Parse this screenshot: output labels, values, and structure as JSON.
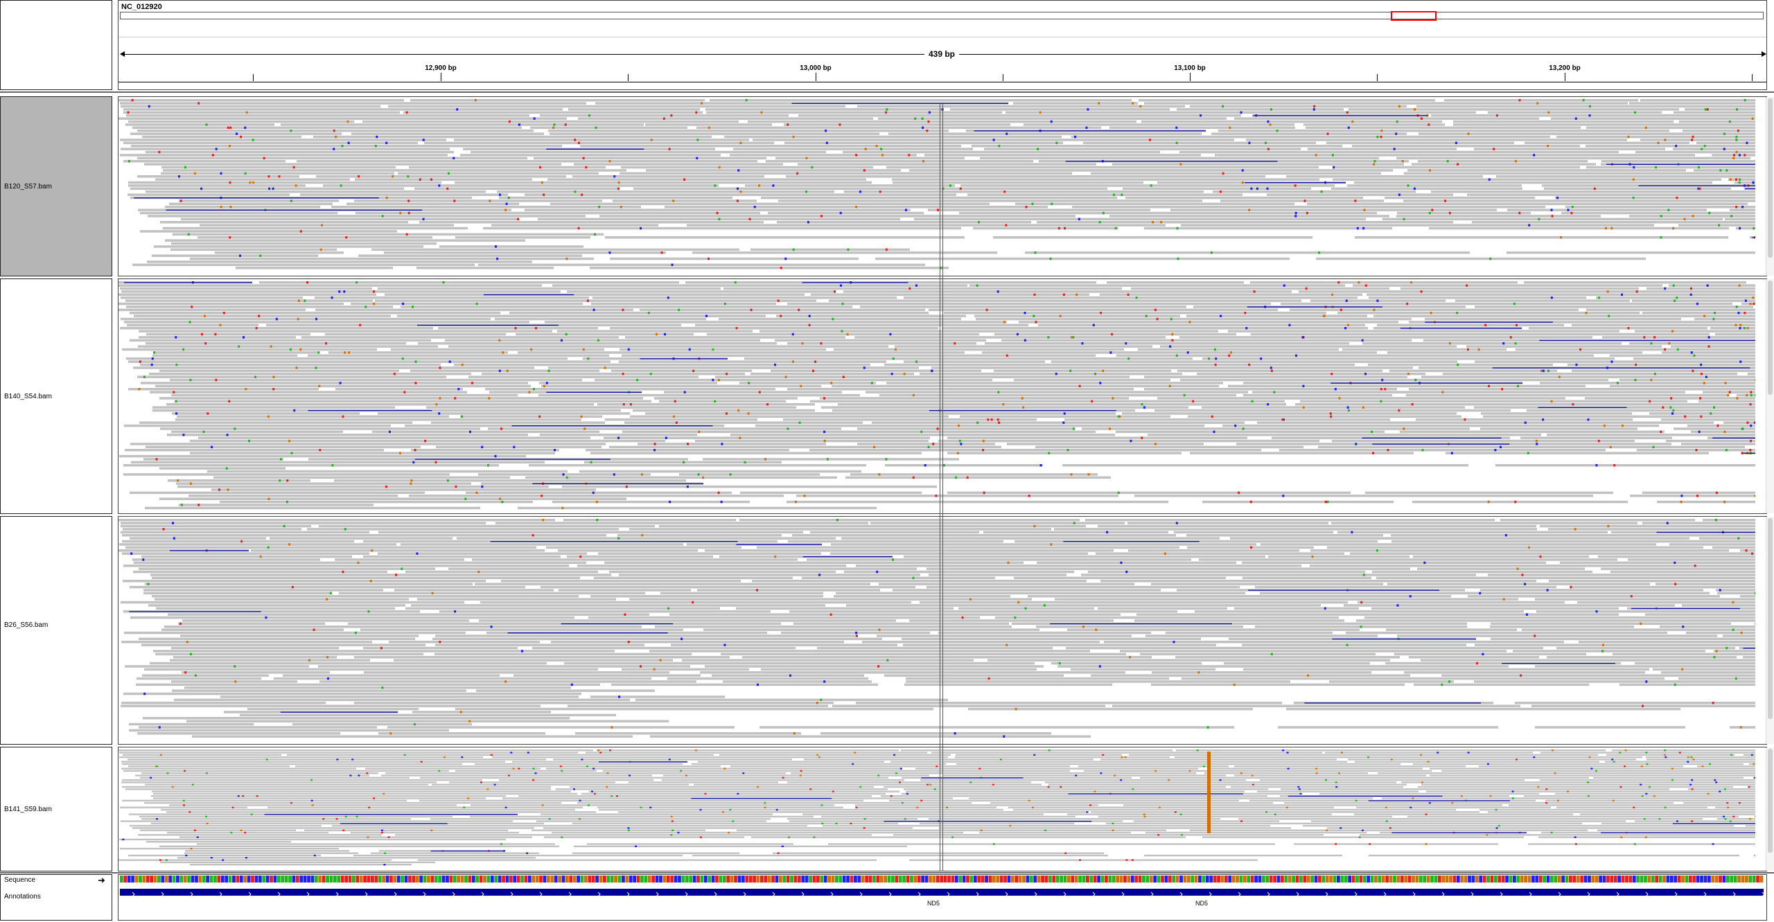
{
  "ruler": {
    "chromosome": "NC_012920",
    "span_label": "439 bp",
    "ticks": [
      "12,900 bp",
      "13,000 bp",
      "13,100 bp",
      "13,200 bp"
    ]
  },
  "tracks": [
    {
      "name": "B120_S57.bam",
      "selected": true
    },
    {
      "name": "B140_S54.bam",
      "selected": false
    },
    {
      "name": "B26_S56.bam",
      "selected": false
    },
    {
      "name": "B141_S59.bam",
      "selected": false
    }
  ],
  "sequence": {
    "label": "Sequence",
    "strand_icon": "right-arrow-icon"
  },
  "annotations": {
    "label": "Annotations",
    "genes": [
      "ND5",
      "ND5"
    ]
  },
  "colors": {
    "read": "#c1c1c1",
    "deletion_line": "#1a1aa8",
    "base_A": "#1fb51f",
    "base_C": "#1f1ff0",
    "base_G": "#d17105",
    "base_T": "#e81e1e",
    "gene": "#000099",
    "locus_box": "#ff0000",
    "selected_name_bg": "#b5b5b5"
  }
}
